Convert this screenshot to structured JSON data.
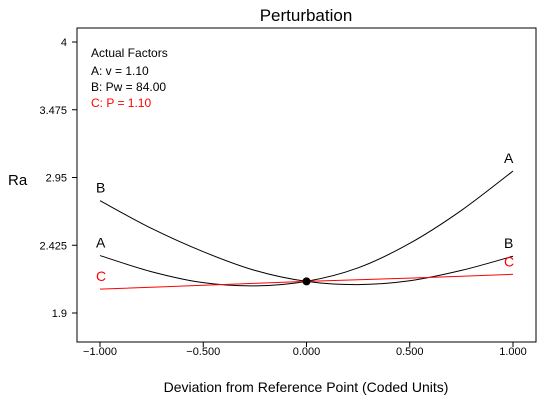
{
  "chart_data": {
    "type": "line",
    "title": "Perturbation",
    "xlabel": "Deviation from Reference Point (Coded Units)",
    "ylabel": "Ra",
    "xlim": [
      -1.0,
      1.0
    ],
    "ylim": [
      1.9,
      4.0
    ],
    "xticks": [
      -1.0,
      -0.5,
      0.0,
      0.5,
      1.0
    ],
    "xtick_labels": [
      "-1.000",
      "-0.500",
      "0.000",
      "0.500",
      "1.000"
    ],
    "yticks": [
      1.9,
      2.425,
      2.95,
      3.475,
      4.0
    ],
    "ytick_labels": [
      "1.9",
      "2.425",
      "2.95",
      "3.475",
      "4"
    ],
    "legend": {
      "heading": "Actual Factors",
      "entries": [
        {
          "text": "A: v = 1.10",
          "color": "#000000"
        },
        {
          "text": "B: Pw = 84.00",
          "color": "#000000"
        },
        {
          "text": "C: P = 1.10",
          "color": "#ff0000"
        }
      ],
      "placement": "top-left"
    },
    "reference_point": {
      "x": 0.0,
      "y": 2.145
    },
    "series": [
      {
        "name": "A",
        "color": "#000000",
        "x": [
          -1.0,
          -0.75,
          -0.5,
          -0.25,
          0.0,
          0.25,
          0.5,
          0.75,
          1.0
        ],
        "y": [
          2.345,
          2.22,
          2.135,
          2.11,
          2.145,
          2.25,
          2.44,
          2.695,
          3.0
        ]
      },
      {
        "name": "B",
        "color": "#000000",
        "x": [
          -1.0,
          -0.75,
          -0.5,
          -0.25,
          0.0,
          0.25,
          0.5,
          0.75,
          1.0
        ],
        "y": [
          2.77,
          2.555,
          2.375,
          2.23,
          2.145,
          2.12,
          2.15,
          2.23,
          2.34
        ]
      },
      {
        "name": "C",
        "color": "#ff0000",
        "x": [
          -1.0,
          -0.5,
          0.0,
          0.5,
          1.0
        ],
        "y": [
          2.085,
          2.115,
          2.145,
          2.17,
          2.2
        ]
      }
    ]
  }
}
